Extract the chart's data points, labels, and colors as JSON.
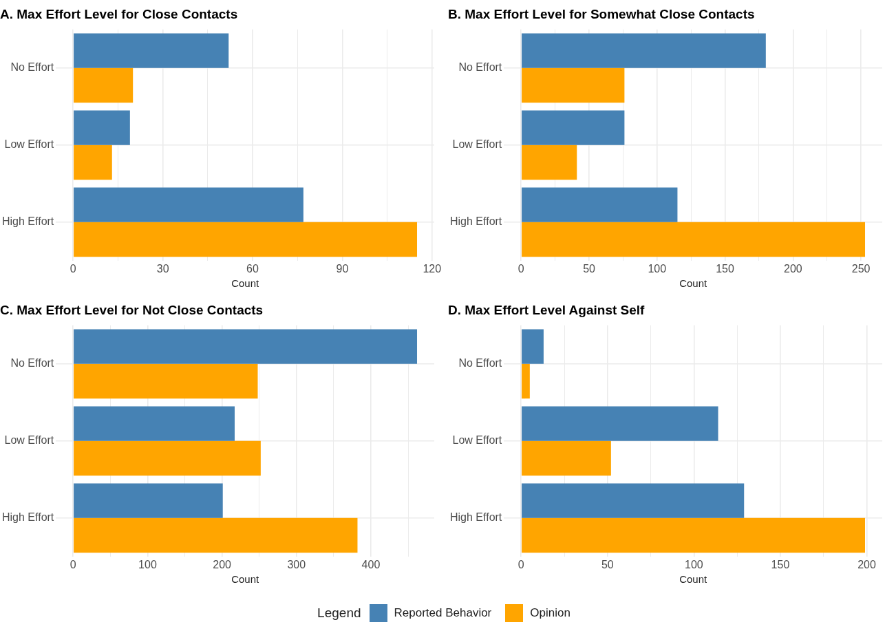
{
  "chart_data": [
    {
      "type": "bar",
      "orientation": "horizontal",
      "title": "A. Max Effort Level for Close Contacts",
      "xlabel": "Count",
      "categories": [
        "No Effort",
        "Low Effort",
        "High Effort"
      ],
      "series": [
        {
          "name": "Reported Behavior",
          "color": "#4682b4",
          "values": [
            52,
            19,
            77
          ]
        },
        {
          "name": "Opinion",
          "color": "#ffa500",
          "values": [
            20,
            13,
            115
          ]
        }
      ],
      "xlim": [
        -5.75,
        120.75
      ],
      "xticks": [
        0,
        {
          "value": 15,
          "label": null
        },
        30,
        {
          "value": 45,
          "label": null
        },
        60,
        {
          "value": 75,
          "label": null
        },
        90,
        {
          "value": 105,
          "label": null
        },
        120
      ],
      "grid": true,
      "legend": "bottom",
      "legend_title": "Legend"
    },
    {
      "type": "bar",
      "orientation": "horizontal",
      "title": "B. Max Effort Level for Somewhat Close Contacts",
      "xlabel": "Count",
      "categories": [
        "No Effort",
        "Low Effort",
        "High Effort"
      ],
      "series": [
        {
          "color": "#4682b4",
          "values": [
            180,
            76,
            115
          ]
        },
        {
          "color": "#ffa500",
          "values": [
            76,
            41,
            253
          ]
        }
      ],
      "xlim": [
        -12.65,
        265.65
      ],
      "xticks": [
        0,
        {
          "value": 25,
          "label": null
        },
        50,
        {
          "value": 75,
          "label": null
        },
        100,
        {
          "value": 125,
          "label": null
        },
        150,
        {
          "value": 175,
          "label": null
        },
        200,
        {
          "value": 225,
          "label": null
        },
        250
      ],
      "grid": true
    },
    {
      "type": "bar",
      "orientation": "horizontal",
      "title": "C. Max Effort Level for Not Close Contacts",
      "xlabel": "Count",
      "categories": [
        "No Effort",
        "Low Effort",
        "High Effort"
      ],
      "series": [
        {
          "color": "#4682b4",
          "values": [
            462,
            217,
            201
          ]
        },
        {
          "color": "#ffa500",
          "values": [
            248,
            252,
            382
          ]
        }
      ],
      "xlim": [
        -23.1,
        485.1
      ],
      "xticks": [
        0,
        {
          "value": 50,
          "label": null
        },
        100,
        {
          "value": 150,
          "label": null
        },
        200,
        {
          "value": 250,
          "label": null
        },
        300,
        {
          "value": 350,
          "label": null
        },
        400,
        {
          "value": 450,
          "label": null
        }
      ],
      "grid": true
    },
    {
      "type": "bar",
      "orientation": "horizontal",
      "title": "D. Max Effort Level Against Self",
      "xlabel": "Count",
      "categories": [
        "No Effort",
        "Low Effort",
        "High Effort"
      ],
      "series": [
        {
          "color": "#4682b4",
          "values": [
            13,
            114,
            129
          ]
        },
        {
          "color": "#ffa500",
          "values": [
            5,
            52,
            199
          ]
        }
      ],
      "xlim": [
        -9.95,
        208.95
      ],
      "xticks": [
        0,
        {
          "value": 25,
          "label": null
        },
        50,
        {
          "value": 75,
          "label": null
        },
        100,
        {
          "value": 125,
          "label": null
        },
        150,
        {
          "value": 175,
          "label": null
        },
        200
      ],
      "grid": true
    }
  ]
}
